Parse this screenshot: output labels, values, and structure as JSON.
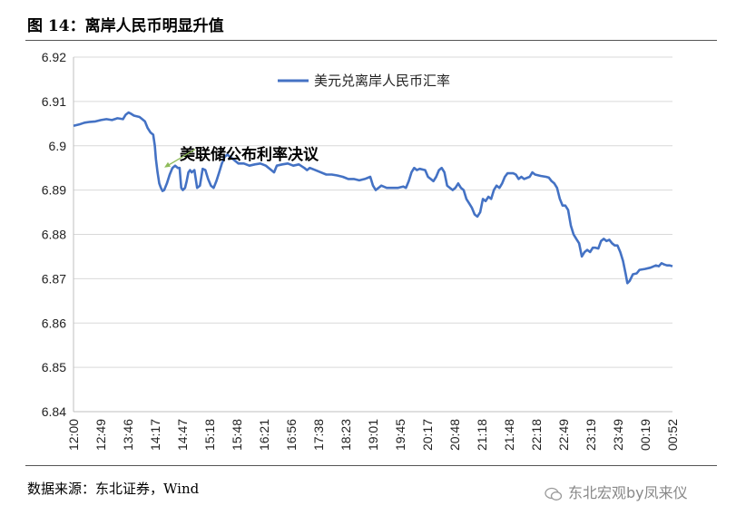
{
  "figure_title": "图 14：离岸人民币明显升值",
  "source_text": "数据来源：东北证券，Wind",
  "watermark_text": "东北宏观by凤来仪",
  "watermark_icon": "wechat-icon",
  "colors": {
    "line": "#4472C4",
    "grid": "#d9d9d9",
    "annotation_arrow": "#8fbc5a"
  },
  "chart_data": {
    "type": "line",
    "title": "",
    "xlabel": "",
    "ylabel": "",
    "ylim": [
      6.84,
      6.92
    ],
    "yticks": [
      "6.84",
      "6.85",
      "6.86",
      "6.87",
      "6.88",
      "6.89",
      "6.9",
      "6.91",
      "6.92"
    ],
    "xticks": [
      "12:00",
      "12:49",
      "13:46",
      "14:17",
      "14:47",
      "15:18",
      "15:48",
      "16:21",
      "16:56",
      "17:38",
      "18:23",
      "19:01",
      "19:45",
      "20:17",
      "20:48",
      "21:18",
      "21:48",
      "22:18",
      "22:49",
      "23:19",
      "23:49",
      "00:19",
      "00:52"
    ],
    "grid": true,
    "legend": {
      "position": "top-center",
      "label": "美元兑离岸人民币汇率"
    },
    "annotation": {
      "text": "美联储公布利率决议",
      "at_index": 185
    },
    "series": [
      {
        "name": "美元兑离岸人民币汇率",
        "points": [
          [
            0,
            6.9045
          ],
          [
            10,
            6.9048
          ],
          [
            20,
            6.9052
          ],
          [
            30,
            6.9054
          ],
          [
            40,
            6.9055
          ],
          [
            50,
            6.9058
          ],
          [
            60,
            6.906
          ],
          [
            70,
            6.9058
          ],
          [
            80,
            6.9062
          ],
          [
            90,
            6.906
          ],
          [
            95,
            6.907
          ],
          [
            100,
            6.9075
          ],
          [
            105,
            6.9072
          ],
          [
            110,
            6.9068
          ],
          [
            120,
            6.9065
          ],
          [
            125,
            6.906
          ],
          [
            130,
            6.9055
          ],
          [
            135,
            6.904
          ],
          [
            140,
            6.903
          ],
          [
            145,
            6.9025
          ],
          [
            148,
            6.9
          ],
          [
            150,
            6.897
          ],
          [
            153,
            6.894
          ],
          [
            156,
            6.8915
          ],
          [
            159,
            6.8905
          ],
          [
            162,
            6.8898
          ],
          [
            165,
            6.89
          ],
          [
            170,
            6.8915
          ],
          [
            175,
            6.8935
          ],
          [
            180,
            6.895
          ],
          [
            185,
            6.8955
          ],
          [
            190,
            6.895
          ],
          [
            193,
            6.895
          ],
          [
            196,
            6.8905
          ],
          [
            199,
            6.89
          ],
          [
            203,
            6.8905
          ],
          [
            206,
            6.892
          ],
          [
            209,
            6.894
          ],
          [
            212,
            6.8945
          ],
          [
            215,
            6.894
          ],
          [
            220,
            6.8945
          ],
          [
            225,
            6.8905
          ],
          [
            230,
            6.891
          ],
          [
            235,
            6.8948
          ],
          [
            240,
            6.8945
          ],
          [
            245,
            6.8925
          ],
          [
            250,
            6.891
          ],
          [
            255,
            6.8905
          ],
          [
            260,
            6.892
          ],
          [
            265,
            6.894
          ],
          [
            270,
            6.896
          ],
          [
            275,
            6.8975
          ],
          [
            280,
            6.898
          ],
          [
            290,
            6.897
          ],
          [
            300,
            6.896
          ],
          [
            310,
            6.896
          ],
          [
            320,
            6.8955
          ],
          [
            330,
            6.8958
          ],
          [
            340,
            6.896
          ],
          [
            350,
            6.8955
          ],
          [
            360,
            6.8945
          ],
          [
            365,
            6.894
          ],
          [
            370,
            6.8955
          ],
          [
            380,
            6.8958
          ],
          [
            390,
            6.896
          ],
          [
            400,
            6.8955
          ],
          [
            410,
            6.8958
          ],
          [
            420,
            6.895
          ],
          [
            425,
            6.8945
          ],
          [
            430,
            6.895
          ],
          [
            440,
            6.8945
          ],
          [
            450,
            6.894
          ],
          [
            460,
            6.8935
          ],
          [
            470,
            6.8935
          ],
          [
            480,
            6.8933
          ],
          [
            490,
            6.893
          ],
          [
            500,
            6.8925
          ],
          [
            510,
            6.8925
          ],
          [
            520,
            6.8922
          ],
          [
            530,
            6.8925
          ],
          [
            540,
            6.893
          ],
          [
            545,
            6.891
          ],
          [
            550,
            6.89
          ],
          [
            555,
            6.8905
          ],
          [
            560,
            6.891
          ],
          [
            570,
            6.8905
          ],
          [
            580,
            6.8905
          ],
          [
            590,
            6.8905
          ],
          [
            600,
            6.8908
          ],
          [
            605,
            6.8905
          ],
          [
            610,
            6.892
          ],
          [
            615,
            6.894
          ],
          [
            620,
            6.895
          ],
          [
            625,
            6.8945
          ],
          [
            630,
            6.8948
          ],
          [
            640,
            6.8945
          ],
          [
            645,
            6.893
          ],
          [
            650,
            6.8925
          ],
          [
            655,
            6.892
          ],
          [
            660,
            6.893
          ],
          [
            665,
            6.8945
          ],
          [
            670,
            6.895
          ],
          [
            675,
            6.894
          ],
          [
            680,
            6.891
          ],
          [
            685,
            6.8905
          ],
          [
            690,
            6.89
          ],
          [
            695,
            6.8905
          ],
          [
            700,
            6.8915
          ],
          [
            705,
            6.8905
          ],
          [
            710,
            6.89
          ],
          [
            715,
            6.888
          ],
          [
            720,
            6.887
          ],
          [
            725,
            6.886
          ],
          [
            730,
            6.8845
          ],
          [
            735,
            6.884
          ],
          [
            740,
            6.885
          ],
          [
            745,
            6.888
          ],
          [
            750,
            6.8875
          ],
          [
            755,
            6.8885
          ],
          [
            760,
            6.888
          ],
          [
            765,
            6.89
          ],
          [
            770,
            6.891
          ],
          [
            775,
            6.8905
          ],
          [
            780,
            6.8915
          ],
          [
            785,
            6.893
          ],
          [
            790,
            6.8938
          ],
          [
            800,
            6.8938
          ],
          [
            805,
            6.8935
          ],
          [
            810,
            6.8925
          ],
          [
            815,
            6.893
          ],
          [
            820,
            6.8925
          ],
          [
            830,
            6.893
          ],
          [
            835,
            6.894
          ],
          [
            840,
            6.8935
          ],
          [
            850,
            6.8932
          ],
          [
            860,
            6.893
          ],
          [
            865,
            6.8928
          ],
          [
            870,
            6.892
          ],
          [
            875,
            6.8915
          ],
          [
            880,
            6.8905
          ],
          [
            885,
            6.888
          ],
          [
            890,
            6.8865
          ],
          [
            895,
            6.8865
          ],
          [
            900,
            6.8855
          ],
          [
            905,
            6.882
          ],
          [
            910,
            6.88
          ],
          [
            915,
            6.879
          ],
          [
            920,
            6.878
          ],
          [
            925,
            6.875
          ],
          [
            930,
            6.876
          ],
          [
            935,
            6.8765
          ],
          [
            940,
            6.876
          ],
          [
            945,
            6.877
          ],
          [
            950,
            6.877
          ],
          [
            955,
            6.8768
          ],
          [
            960,
            6.8785
          ],
          [
            965,
            6.879
          ],
          [
            970,
            6.8785
          ],
          [
            975,
            6.8788
          ],
          [
            980,
            6.878
          ],
          [
            985,
            6.8775
          ],
          [
            990,
            6.8775
          ],
          [
            995,
            6.876
          ],
          [
            1000,
            6.874
          ],
          [
            1005,
            6.871
          ],
          [
            1008,
            6.869
          ],
          [
            1012,
            6.8695
          ],
          [
            1018,
            6.871
          ],
          [
            1025,
            6.8712
          ],
          [
            1030,
            6.872
          ],
          [
            1040,
            6.8722
          ],
          [
            1050,
            6.8725
          ],
          [
            1060,
            6.873
          ],
          [
            1065,
            6.8728
          ],
          [
            1070,
            6.8735
          ],
          [
            1075,
            6.8732
          ],
          [
            1080,
            6.873
          ],
          [
            1085,
            6.873
          ],
          [
            1090,
            6.8728
          ]
        ]
      }
    ]
  }
}
